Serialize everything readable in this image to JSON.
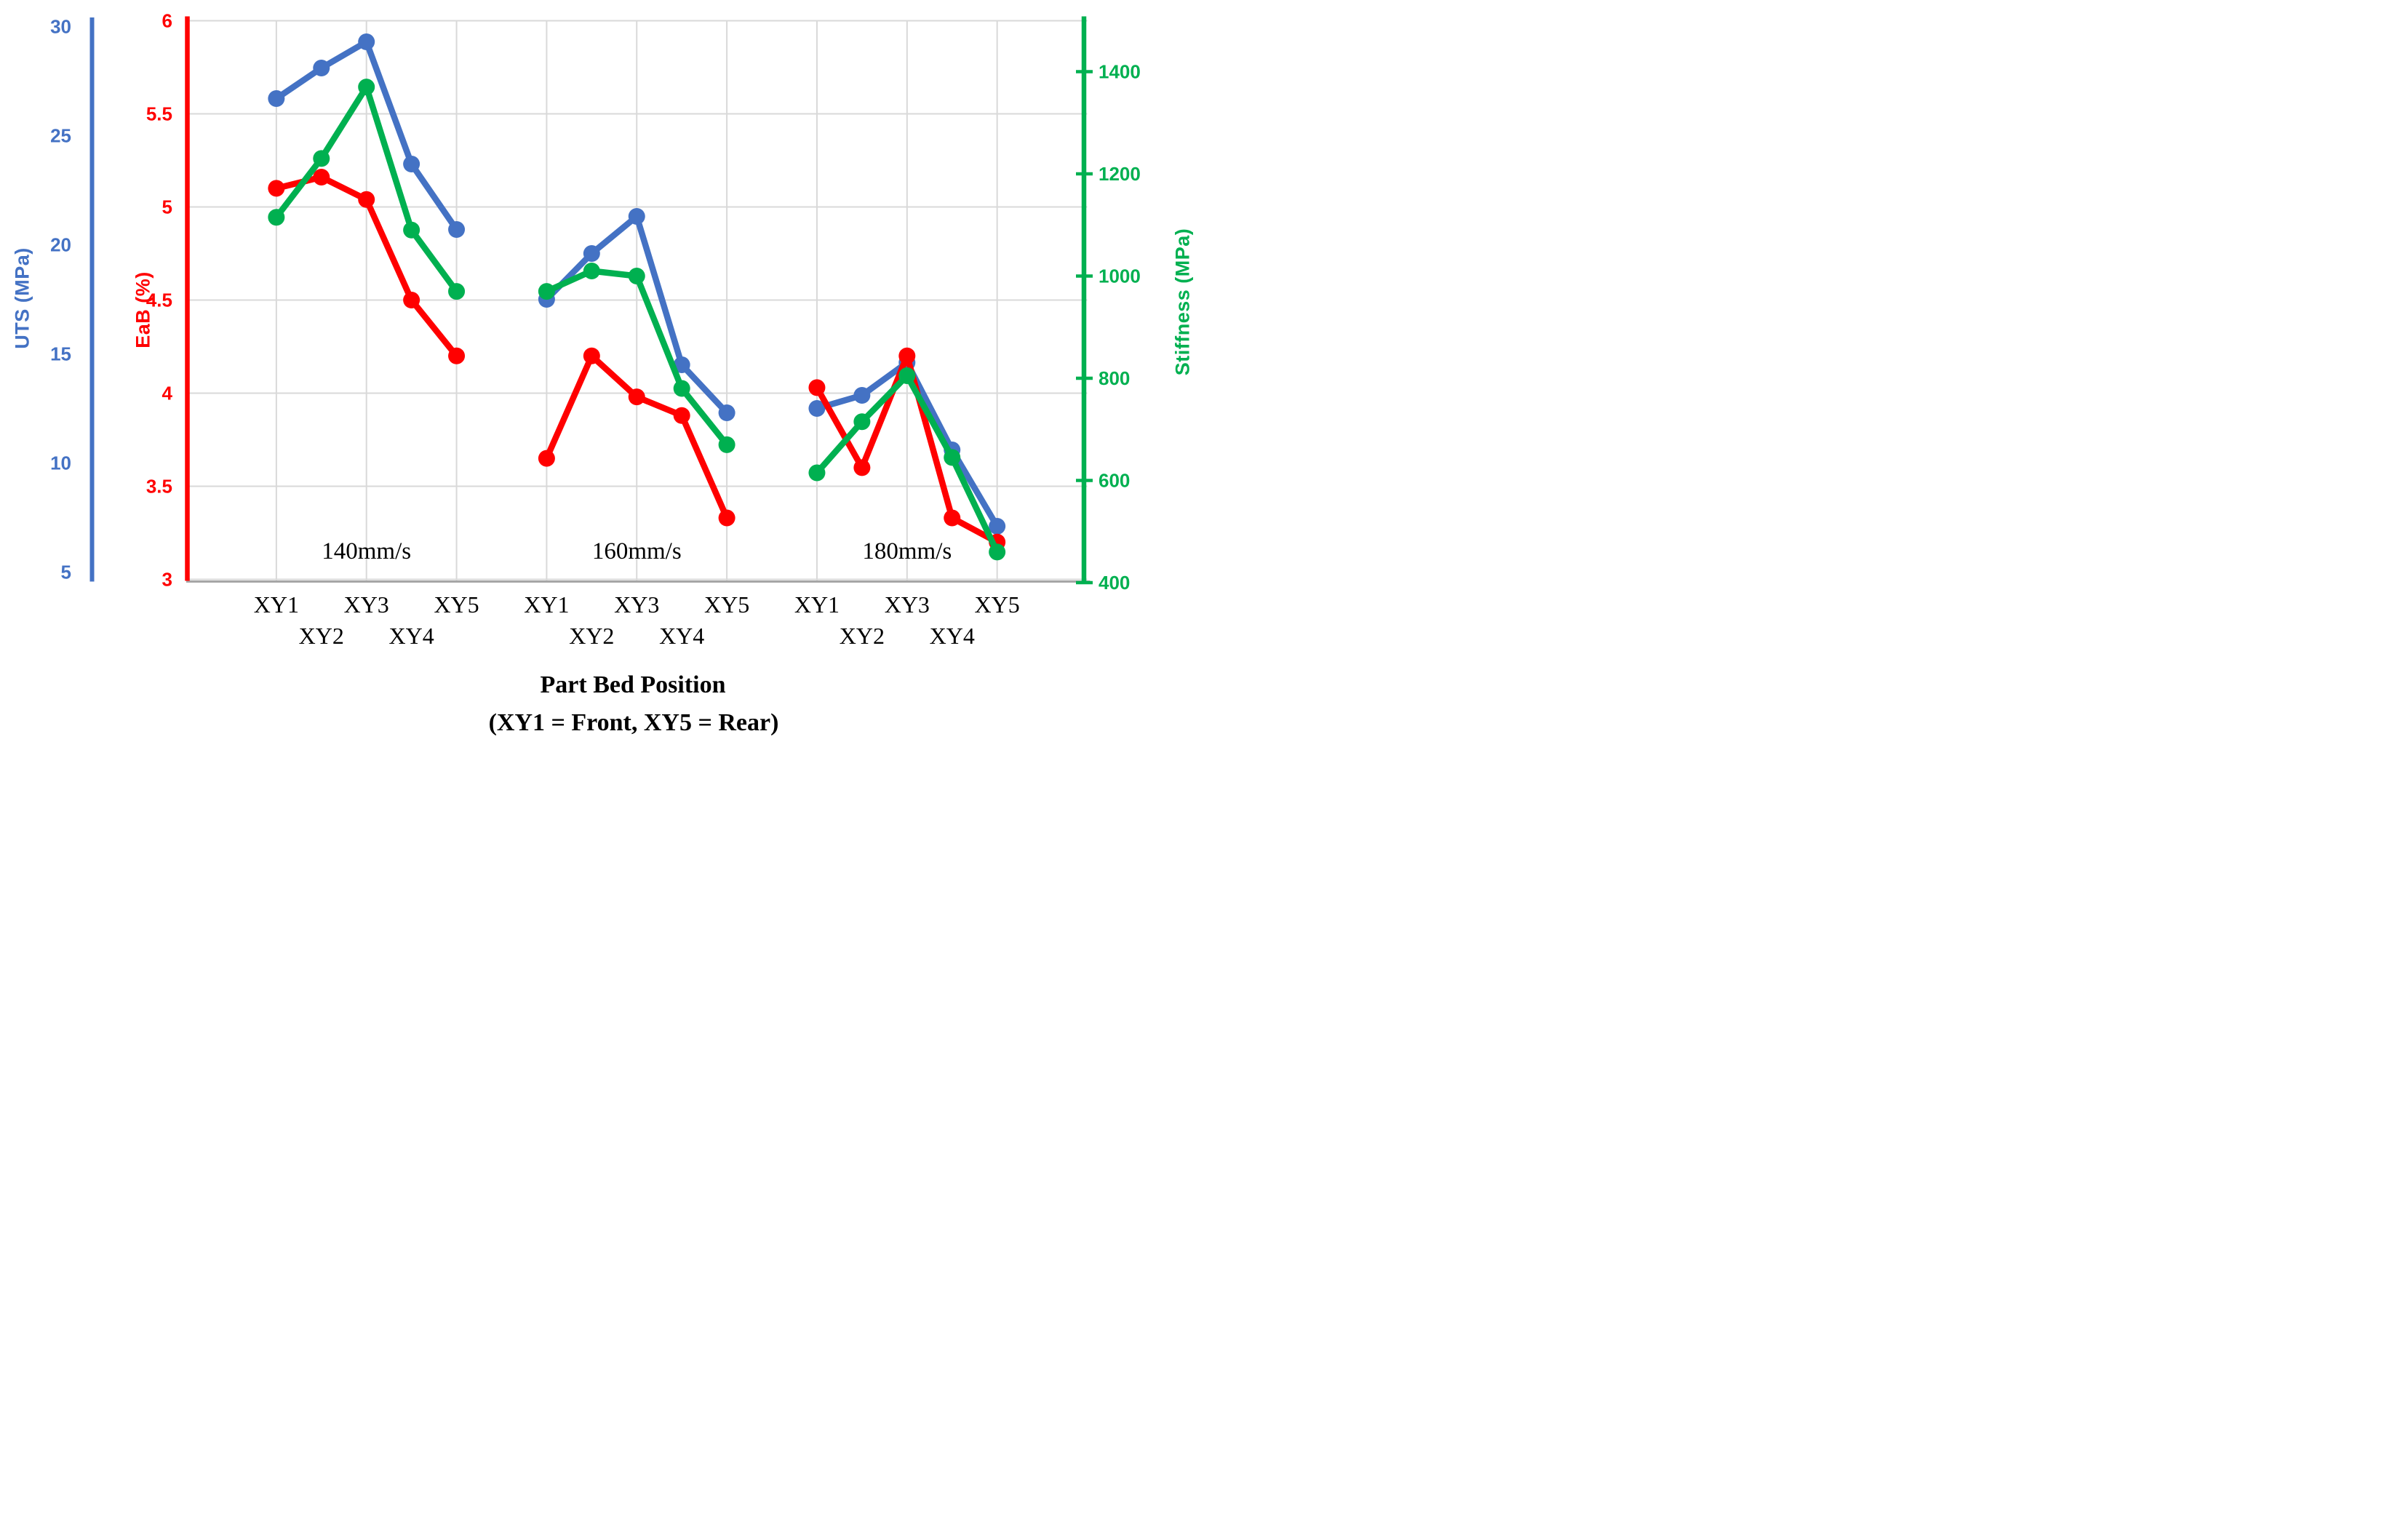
{
  "chart_data": {
    "type": "line",
    "title": "",
    "x_axis": {
      "title": "Part Bed Position",
      "subtitle": "(XY1 = Front, XY5 = Rear)",
      "group_labels": [
        "140mm/s",
        "160mm/s",
        "180mm/s"
      ],
      "categories_per_group": [
        "XY1",
        "XY2",
        "XY3",
        "XY4",
        "XY5"
      ],
      "label_layout": "staggered-two-rows"
    },
    "y_axes": [
      {
        "id": "uts",
        "title": "UTS (MPa)",
        "color": "#4472C4",
        "side": "outer-left",
        "min": 5,
        "max": 30,
        "ticks": [
          30,
          25,
          20,
          15,
          10,
          5
        ]
      },
      {
        "id": "eab",
        "title": "EaB (%)",
        "color": "#FF0000",
        "side": "inner-left",
        "min": 3,
        "max": 6,
        "ticks": [
          6,
          5.5,
          5,
          4.5,
          4,
          3.5,
          3
        ]
      },
      {
        "id": "stiffness",
        "title": "Stiffness (MPa)",
        "color": "#00B050",
        "side": "right",
        "min": 400,
        "max": 1500,
        "ticks": [
          1400,
          1200,
          1000,
          800,
          600,
          400
        ]
      }
    ],
    "grid": {
      "horizontal_follows": "eab",
      "vertical_on_categories": [
        "XY1",
        "XY3",
        "XY5"
      ],
      "color": "#D9D9D9"
    },
    "series": [
      {
        "name": "UTS (MPa)",
        "axis": "uts",
        "color": "#4472C4",
        "groups": [
          [
            26.7,
            28.1,
            29.3,
            23.7,
            20.7
          ],
          [
            17.5,
            19.6,
            21.3,
            14.5,
            12.3
          ],
          [
            12.5,
            13.1,
            14.6,
            10.6,
            7.1
          ]
        ]
      },
      {
        "name": "EaB (%)",
        "axis": "eab",
        "color": "#FF0000",
        "groups": [
          [
            5.1,
            5.16,
            5.04,
            4.5,
            4.2
          ],
          [
            3.65,
            4.2,
            3.98,
            3.88,
            3.33
          ],
          [
            4.03,
            3.6,
            4.2,
            3.33,
            3.2
          ]
        ]
      },
      {
        "name": "Stiffness (MPa)",
        "axis": "stiffness",
        "color": "#00B050",
        "groups": [
          [
            1115,
            1230,
            1370,
            1090,
            970
          ],
          [
            970,
            1010,
            1000,
            780,
            670
          ],
          [
            615,
            715,
            805,
            645,
            460
          ]
        ]
      }
    ]
  }
}
